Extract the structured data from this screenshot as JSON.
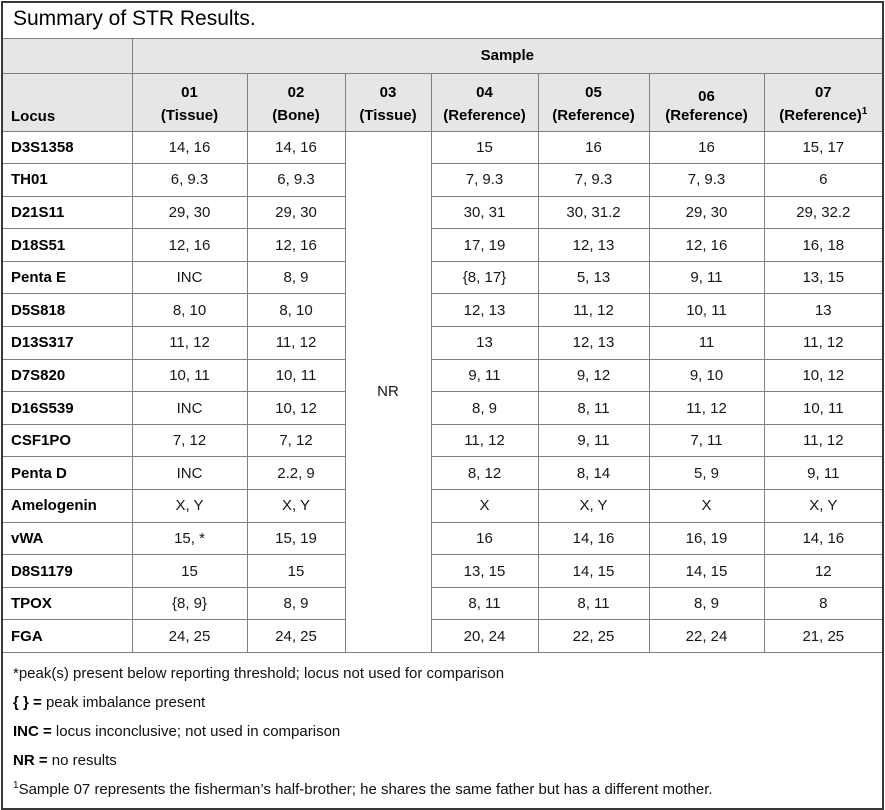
{
  "title": "Summary of STR Results.",
  "table": {
    "sample_header": "Sample",
    "locus_header": "Locus",
    "columns": [
      {
        "label": "01",
        "sub": "(Tissue)",
        "sup": ""
      },
      {
        "label": "02",
        "sub": "(Bone)",
        "sup": ""
      },
      {
        "label": "03",
        "sub": "(Tissue)",
        "sup": ""
      },
      {
        "label": "04",
        "sub": "(Reference)",
        "sup": ""
      },
      {
        "label": "05",
        "sub": "(Reference)",
        "sup": ""
      },
      {
        "label": "06",
        "sub": "(Reference)",
        "sup": "1"
      }
    ],
    "column03_merged_value": "NR",
    "rows": [
      {
        "locus": "D3S1358",
        "s01": "14, 16",
        "s02": "14, 16",
        "s04": "15",
        "s05": "16",
        "s06": "16",
        "s07": "15, 17"
      },
      {
        "locus": "TH01",
        "s01": "6, 9.3",
        "s02": "6, 9.3",
        "s04": "7, 9.3",
        "s05": "7, 9.3",
        "s06": "7, 9.3",
        "s07": "6"
      },
      {
        "locus": "D21S11",
        "s01": "29, 30",
        "s02": "29, 30",
        "s04": "30, 31",
        "s05": "30, 31.2",
        "s06": "29, 30",
        "s07": "29, 32.2"
      },
      {
        "locus": "D18S51",
        "s01": "12, 16",
        "s02": "12, 16",
        "s04": "17, 19",
        "s05": "12, 13",
        "s06": "12, 16",
        "s07": "16, 18"
      },
      {
        "locus": "Penta E",
        "s01": "INC",
        "s02": "8, 9",
        "s04": "{8, 17}",
        "s05": "5, 13",
        "s06": "9, 11",
        "s07": "13, 15"
      },
      {
        "locus": "D5S818",
        "s01": "8, 10",
        "s02": "8, 10",
        "s04": "12, 13",
        "s05": "11, 12",
        "s06": "10, 11",
        "s07": "13"
      },
      {
        "locus": "D13S317",
        "s01": "11, 12",
        "s02": "11, 12",
        "s04": "13",
        "s05": "12, 13",
        "s06": "11",
        "s07": "11, 12"
      },
      {
        "locus": "D7S820",
        "s01": "10, 11",
        "s02": "10, 11",
        "s04": "9, 11",
        "s05": "9, 12",
        "s06": "9, 10",
        "s07": "10, 12"
      },
      {
        "locus": "D16S539",
        "s01": "INC",
        "s02": "10, 12",
        "s04": "8, 9",
        "s05": "8, 11",
        "s06": "11, 12",
        "s07": "10, 11"
      },
      {
        "locus": "CSF1PO",
        "s01": "7, 12",
        "s02": "7, 12",
        "s04": "11, 12",
        "s05": "9, 11",
        "s06": "7, 11",
        "s07": "11, 12"
      },
      {
        "locus": "Penta D",
        "s01": "INC",
        "s02": "2.2, 9",
        "s04": "8, 12",
        "s05": "8, 14",
        "s06": "5, 9",
        "s07": "9, 11"
      },
      {
        "locus": "Amelogenin",
        "s01": "X, Y",
        "s02": "X, Y",
        "s04": "X",
        "s05": "X, Y",
        "s06": "X",
        "s07": "X, Y"
      },
      {
        "locus": "vWA",
        "s01": "15, *",
        "s02": "15, 19",
        "s04": "16",
        "s05": "14, 16",
        "s06": "16, 19",
        "s07": "14, 16"
      },
      {
        "locus": "D8S1179",
        "s01": "15",
        "s02": "15",
        "s04": "13, 15",
        "s05": "14, 15",
        "s06": "14, 15",
        "s07": "12"
      },
      {
        "locus": "TPOX",
        "s01": "{8, 9}",
        "s02": "8, 9",
        "s04": "8, 11",
        "s05": "8, 11",
        "s06": "8, 9",
        "s07": "8"
      },
      {
        "locus": "FGA",
        "s01": "24, 25",
        "s02": "24, 25",
        "s04": "20, 24",
        "s05": "22, 25",
        "s06": "22, 24",
        "s07": "21, 25"
      }
    ]
  },
  "footnotes": [
    {
      "bold": "",
      "sup": "",
      "text": "*peak(s) present below reporting threshold; locus not used for comparison"
    },
    {
      "bold": "{ } =",
      "sup": "",
      "text": " peak imbalance present"
    },
    {
      "bold": "INC =",
      "sup": "",
      "text": " locus inconclusive; not used in comparison"
    },
    {
      "bold": "NR =",
      "sup": "",
      "text": " no results"
    },
    {
      "bold": "",
      "sup": "1",
      "text": "Sample 07 represents the fisherman’s half-brother; he shares the same father but has a different mother."
    }
  ]
}
